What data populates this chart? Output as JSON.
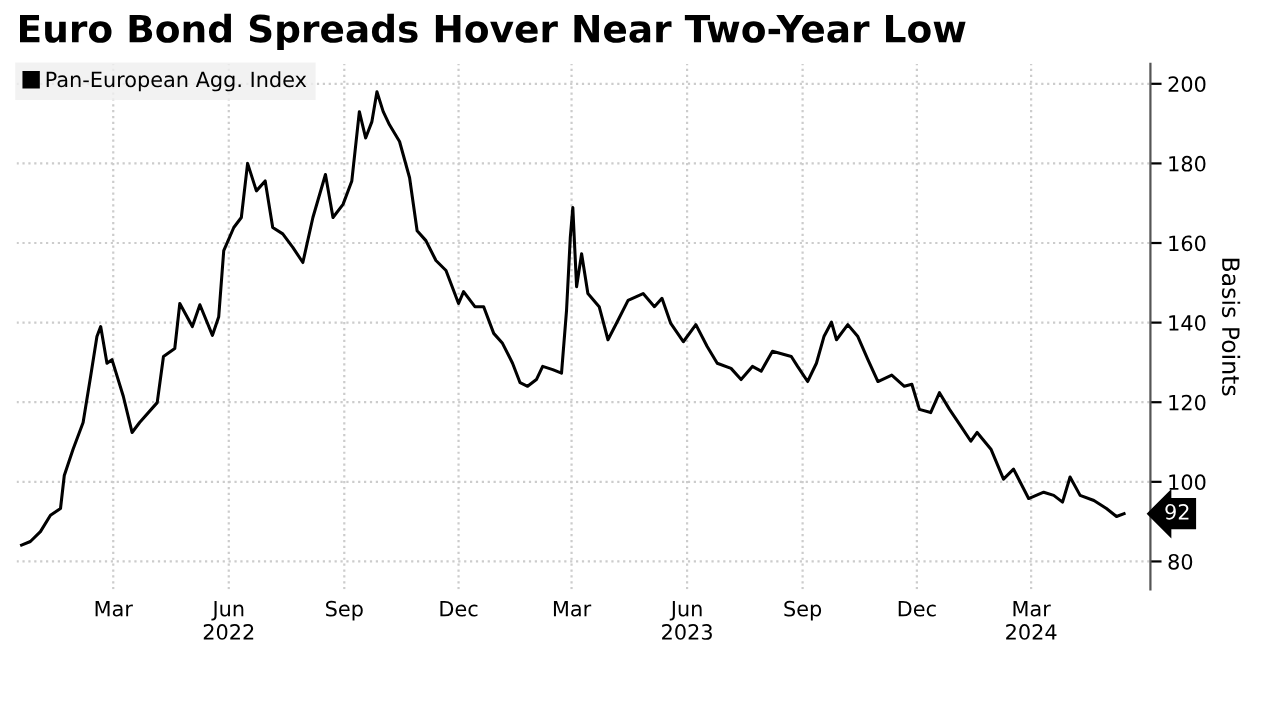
{
  "chart_data": {
    "type": "line",
    "title": "Euro Bond Spreads Hover Near Two-Year Low",
    "ylabel": "Basis Points",
    "series": [
      {
        "name": "Pan-European Agg. Index",
        "color": "#000000",
        "x": [
          "2021-12-18",
          "2021-12-25",
          "2022-01-02",
          "2022-01-10",
          "2022-01-18",
          "2022-01-21",
          "2022-01-28",
          "2022-02-05",
          "2022-02-11",
          "2022-02-16",
          "2022-02-19",
          "2022-02-24",
          "2022-02-28",
          "2022-03-09",
          "2022-03-16",
          "2022-03-22",
          "2022-04-05",
          "2022-04-10",
          "2022-04-19",
          "2022-04-23",
          "2022-05-03",
          "2022-05-09",
          "2022-05-19",
          "2022-05-24",
          "2022-05-28",
          "2022-06-05",
          "2022-06-11",
          "2022-06-16",
          "2022-06-23",
          "2022-06-30",
          "2022-07-06",
          "2022-07-14",
          "2022-07-22",
          "2022-07-30",
          "2022-08-07",
          "2022-08-17",
          "2022-08-23",
          "2022-08-31",
          "2022-09-07",
          "2022-09-13",
          "2022-09-18",
          "2022-09-23",
          "2022-09-27",
          "2022-10-02",
          "2022-10-07",
          "2022-10-15",
          "2022-10-23",
          "2022-10-29",
          "2022-11-05",
          "2022-11-13",
          "2022-11-21",
          "2022-12-01",
          "2022-12-05",
          "2022-12-14",
          "2022-12-21",
          "2022-12-29",
          "2023-01-05",
          "2023-01-13",
          "2023-01-19",
          "2023-01-25",
          "2023-02-01",
          "2023-02-06",
          "2023-02-14",
          "2023-02-21",
          "2023-02-25",
          "2023-02-28",
          "2023-03-02",
          "2023-03-05",
          "2023-03-09",
          "2023-03-14",
          "2023-03-23",
          "2023-03-30",
          "2023-04-07",
          "2023-04-15",
          "2023-04-27",
          "2023-05-06",
          "2023-05-12",
          "2023-05-19",
          "2023-05-29",
          "2023-06-08",
          "2023-06-17",
          "2023-06-25",
          "2023-07-06",
          "2023-07-14",
          "2023-07-23",
          "2023-07-30",
          "2023-08-08",
          "2023-08-23",
          "2023-08-28",
          "2023-09-05",
          "2023-09-12",
          "2023-09-18",
          "2023-09-24",
          "2023-09-28",
          "2023-10-07",
          "2023-10-15",
          "2023-10-23",
          "2023-10-31",
          "2023-11-11",
          "2023-11-21",
          "2023-11-27",
          "2023-12-03",
          "2023-12-12",
          "2023-12-19",
          "2023-12-27",
          "2024-01-05",
          "2024-01-13",
          "2024-01-18",
          "2024-01-29",
          "2024-02-08",
          "2024-02-16",
          "2024-02-28",
          "2024-03-11",
          "2024-03-19",
          "2024-03-26",
          "2024-04-01",
          "2024-04-09",
          "2024-04-20",
          "2024-04-30",
          "2024-05-08",
          "2024-05-14"
        ],
        "values": [
          84.1,
          85.0,
          87.5,
          91.6,
          93.3,
          101.6,
          108.2,
          114.9,
          126.5,
          136.5,
          139.0,
          129.8,
          130.7,
          121.5,
          112.4,
          114.9,
          119.9,
          131.5,
          133.5,
          144.8,
          139.0,
          144.5,
          136.8,
          141.5,
          158.1,
          163.9,
          166.4,
          180.0,
          173.1,
          175.6,
          163.9,
          162.3,
          158.9,
          155.1,
          166.4,
          177.2,
          166.4,
          169.7,
          175.6,
          193.0,
          186.4,
          190.5,
          198.0,
          193.0,
          189.7,
          185.5,
          176.4,
          163.1,
          160.6,
          155.6,
          153.1,
          144.8,
          147.8,
          144.0,
          144.0,
          137.3,
          134.8,
          129.8,
          124.9,
          124.0,
          125.7,
          129.0,
          128.2,
          127.3,
          143.1,
          161.4,
          168.9,
          149.0,
          157.3,
          147.3,
          144.0,
          135.7,
          140.6,
          145.6,
          147.3,
          144.0,
          146.1,
          139.8,
          135.2,
          139.5,
          134.0,
          129.8,
          128.5,
          125.7,
          129.0,
          127.8,
          132.8,
          131.5,
          129.0,
          125.2,
          129.8,
          136.5,
          140.1,
          135.7,
          139.5,
          136.5,
          130.7,
          125.2,
          126.8,
          124.0,
          124.5,
          118.2,
          117.4,
          122.4,
          118.2,
          114.0,
          110.2,
          112.4,
          108.2,
          100.7,
          103.2,
          95.8,
          97.4,
          96.6,
          94.9,
          101.2,
          96.6,
          95.3,
          93.3,
          91.3,
          92
        ]
      }
    ],
    "xlim": [
      "2021-12-14",
      "2024-06-04"
    ],
    "xticks": [
      {
        "value": "2022-03-01",
        "label": "Mar"
      },
      {
        "value": "2022-06-01",
        "label": "Jun\n2022"
      },
      {
        "value": "2022-09-01",
        "label": "Sep"
      },
      {
        "value": "2022-12-01",
        "label": "Dec"
      },
      {
        "value": "2023-03-01",
        "label": "Mar"
      },
      {
        "value": "2023-06-01",
        "label": "Jun\n2023"
      },
      {
        "value": "2023-09-01",
        "label": "Sep"
      },
      {
        "value": "2023-12-01",
        "label": "Dec"
      },
      {
        "value": "2024-03-01",
        "label": "Mar\n2024"
      }
    ],
    "ylim": [
      73,
      205
    ],
    "yticks": [
      80,
      100,
      120,
      140,
      160,
      180,
      200
    ],
    "annotations": [
      {
        "text": "92",
        "x": "2024-05-14",
        "y": 92
      }
    ],
    "grid": true,
    "legend": "top left",
    "marker": "none",
    "line_style": "solid"
  }
}
